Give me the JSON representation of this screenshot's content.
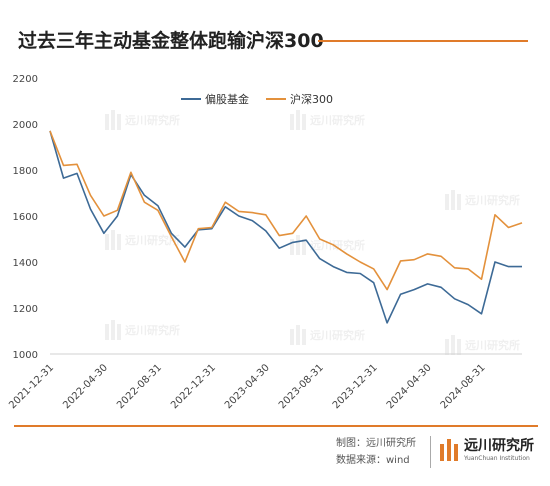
{
  "title": "过去三年主动基金整体跑输沪深300",
  "footer": {
    "maker": "制图：远川研究所",
    "source": "数据来源：wind",
    "logo_text": "远川研究所",
    "logo_sub": "YuanChuan Institution"
  },
  "watermark": "远川研究所",
  "colors": {
    "accent": "#e07b2a",
    "series_blue": "#3d6a96",
    "series_orange": "#e3913c"
  },
  "chart_data": {
    "type": "line",
    "x": [
      "2021-12-31",
      "2022-01-31",
      "2022-02-28",
      "2022-03-31",
      "2022-04-30",
      "2022-05-31",
      "2022-06-30",
      "2022-07-31",
      "2022-08-31",
      "2022-09-30",
      "2022-10-31",
      "2022-11-30",
      "2022-12-31",
      "2023-01-31",
      "2023-02-28",
      "2023-03-31",
      "2023-04-30",
      "2023-05-31",
      "2023-06-30",
      "2023-07-31",
      "2023-08-31",
      "2023-09-30",
      "2023-10-31",
      "2023-11-30",
      "2023-12-31",
      "2024-01-31",
      "2024-02-29",
      "2024-03-31",
      "2024-04-30",
      "2024-05-31",
      "2024-06-30",
      "2024-07-31",
      "2024-08-31",
      "2024-09-30",
      "2024-10-31",
      "2024-11-30"
    ],
    "xticks": [
      "2021-12-31",
      "2022-04-30",
      "2022-08-31",
      "2022-12-31",
      "2023-04-30",
      "2023-08-31",
      "2023-12-31",
      "2024-04-30",
      "2024-08-31"
    ],
    "ylim": [
      1000,
      2200
    ],
    "yticks": [
      1000,
      1200,
      1400,
      1600,
      1800,
      2000,
      2200
    ],
    "grid": false,
    "legend_position": "top-center",
    "series": [
      {
        "name": "偏股基金",
        "color": "#3d6a96",
        "values": [
          1970,
          1765,
          1785,
          1630,
          1525,
          1600,
          1780,
          1690,
          1645,
          1525,
          1465,
          1540,
          1545,
          1640,
          1600,
          1580,
          1535,
          1460,
          1485,
          1495,
          1415,
          1380,
          1355,
          1350,
          1310,
          1135,
          1260,
          1280,
          1305,
          1290,
          1240,
          1215,
          1175,
          1400,
          1380,
          1380
        ]
      },
      {
        "name": "沪深300",
        "color": "#e3913c",
        "values": [
          1970,
          1820,
          1825,
          1690,
          1600,
          1625,
          1790,
          1660,
          1625,
          1510,
          1400,
          1545,
          1550,
          1660,
          1620,
          1615,
          1605,
          1515,
          1525,
          1600,
          1500,
          1475,
          1435,
          1400,
          1370,
          1280,
          1405,
          1410,
          1435,
          1425,
          1375,
          1370,
          1325,
          1605,
          1550,
          1570
        ]
      }
    ]
  }
}
